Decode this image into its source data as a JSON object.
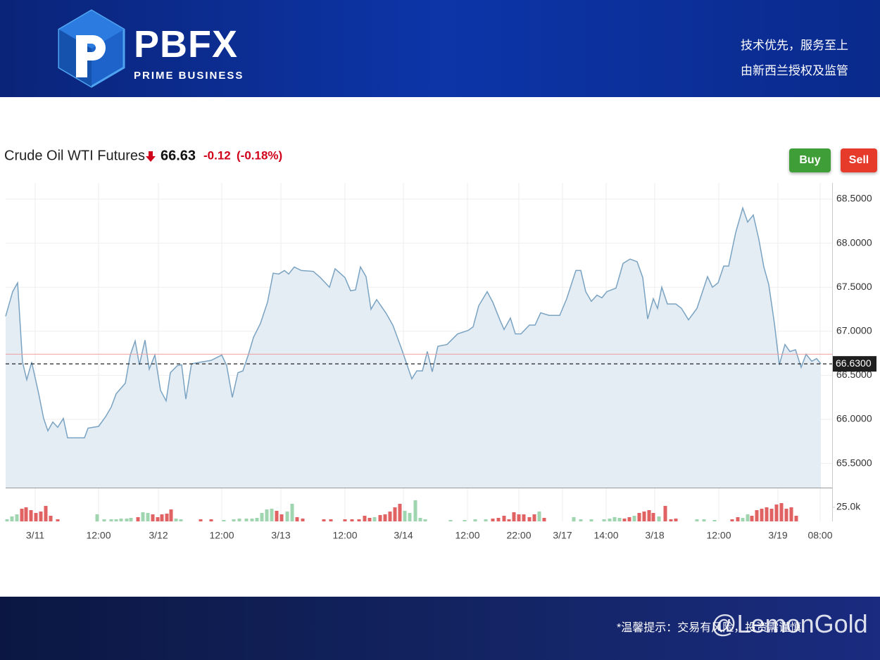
{
  "header": {
    "logo": "PBFX",
    "tagline": "PRIME BUSINESS",
    "slogans": [
      "技术优先，服务至上",
      "由新西兰授权及监管"
    ]
  },
  "chart_data": {
    "type": "line",
    "title": "Crude Oil WTI Futures",
    "last_price": "66.63",
    "change": "-0.12",
    "change_pct": "(-0.18%)",
    "buttons": [
      "Buy",
      "Sell"
    ],
    "color": "#7aa3c2",
    "fill_color": "#e4ecf4",
    "grid": true,
    "xlim": [
      0,
      1174
    ],
    "ylim": [
      65.225,
      68.684
    ],
    "yticks": [
      {
        "value": 65.5,
        "label": "65.5000"
      },
      {
        "value": 66.0,
        "label": "66.0000"
      },
      {
        "value": 66.5,
        "label": "66.5000"
      },
      {
        "value": 67.0,
        "label": "67.0000"
      },
      {
        "value": 67.5,
        "label": "67.5000"
      },
      {
        "value": 68.0,
        "label": "68.0000"
      },
      {
        "value": 68.5,
        "label": "68.5000"
      }
    ],
    "xticks": [
      {
        "value": 42,
        "label": "3/11"
      },
      {
        "value": 132,
        "label": "12:00"
      },
      {
        "value": 217,
        "label": "3/12"
      },
      {
        "value": 307,
        "label": "12:00"
      },
      {
        "value": 391,
        "label": "3/13"
      },
      {
        "value": 482,
        "label": "12:00"
      },
      {
        "value": 565,
        "label": "3/14"
      },
      {
        "value": 656,
        "label": "12:00"
      },
      {
        "value": 729,
        "label": "22:00"
      },
      {
        "value": 791,
        "label": "3/17"
      },
      {
        "value": 853,
        "label": "14:00"
      },
      {
        "value": 922,
        "label": "3/18"
      },
      {
        "value": 1013,
        "label": "12:00"
      },
      {
        "value": 1097,
        "label": "3/19"
      },
      {
        "value": 1157,
        "label": "08:00"
      }
    ],
    "current_price": {
      "value": 66.63,
      "label": "66.6300"
    },
    "reference_line": 66.74,
    "reference_color": "#f0a0a0",
    "x": [
      0,
      10,
      17,
      24,
      30,
      37,
      47,
      54,
      60,
      67,
      74,
      82,
      88,
      102,
      112,
      117,
      132,
      142,
      150,
      157,
      170,
      177,
      184,
      190,
      198,
      204,
      212,
      220,
      228,
      234,
      244,
      250,
      256,
      264,
      277,
      292,
      307,
      314,
      322,
      330,
      337,
      345,
      352,
      362,
      372,
      380,
      388,
      396,
      402,
      410,
      420,
      437,
      447,
      460,
      468,
      482,
      490,
      497,
      504,
      512,
      519,
      527,
      540,
      550,
      562,
      577,
      584,
      592,
      599,
      606,
      614,
      627,
      642,
      657,
      664,
      672,
      684,
      692,
      702,
      708,
      717,
      724,
      732,
      744,
      752,
      760,
      772,
      787,
      797,
      810,
      817,
      824,
      832,
      840,
      847,
      854,
      867,
      877,
      887,
      897,
      905,
      912,
      920,
      926,
      932,
      940,
      952,
      960,
      970,
      982,
      997,
      1004,
      1012,
      1020,
      1027,
      1037,
      1047,
      1054,
      1062,
      1070,
      1077,
      1084,
      1092,
      1099,
      1107,
      1114,
      1122,
      1130,
      1137,
      1145,
      1152,
      1158
    ],
    "values": [
      67.17,
      67.45,
      67.55,
      66.65,
      66.45,
      66.65,
      66.29,
      66.01,
      65.87,
      65.97,
      65.91,
      66.01,
      65.79,
      65.79,
      65.79,
      65.9,
      65.92,
      66.03,
      66.14,
      66.29,
      66.41,
      66.73,
      66.89,
      66.62,
      66.9,
      66.57,
      66.73,
      66.33,
      66.21,
      66.53,
      66.61,
      66.62,
      66.23,
      66.63,
      66.65,
      66.67,
      66.73,
      66.61,
      66.25,
      66.53,
      66.55,
      66.74,
      66.93,
      67.09,
      67.33,
      67.66,
      67.65,
      67.69,
      67.65,
      67.73,
      67.69,
      67.68,
      67.61,
      67.5,
      67.71,
      67.61,
      67.46,
      67.47,
      67.73,
      67.62,
      67.25,
      67.36,
      67.21,
      67.07,
      66.81,
      66.46,
      66.55,
      66.55,
      66.77,
      66.54,
      66.83,
      66.85,
      66.97,
      67.01,
      67.05,
      67.29,
      67.45,
      67.33,
      67.13,
      67.02,
      67.15,
      66.97,
      66.97,
      67.07,
      67.07,
      67.21,
      67.18,
      67.18,
      67.37,
      67.69,
      67.69,
      67.45,
      67.34,
      67.41,
      67.38,
      67.45,
      67.49,
      67.77,
      67.82,
      67.79,
      67.61,
      67.14,
      67.37,
      67.26,
      67.5,
      67.31,
      67.31,
      67.26,
      67.13,
      67.26,
      67.62,
      67.5,
      67.55,
      67.74,
      67.74,
      68.12,
      68.4,
      68.24,
      68.32,
      68.04,
      67.73,
      67.53,
      67.09,
      66.62,
      66.85,
      66.77,
      66.79,
      66.59,
      66.74,
      66.66,
      66.69,
      66.63
    ],
    "volume": {
      "type": "bar",
      "ylim": [
        0,
        57500
      ],
      "yticks": [
        {
          "value": 25000,
          "label": "25.0k"
        }
      ],
      "x": [
        2,
        9,
        16,
        23,
        29,
        36,
        43,
        50,
        57,
        64,
        74,
        130,
        140,
        150,
        157,
        164,
        172,
        178,
        188,
        195,
        202,
        209,
        216,
        222,
        229,
        235,
        242,
        249,
        277,
        292,
        310,
        324,
        332,
        342,
        350,
        357,
        364,
        371,
        378,
        385,
        392,
        400,
        407,
        414,
        422,
        452,
        462,
        482,
        492,
        502,
        510,
        517,
        524,
        532,
        539,
        546,
        553,
        560,
        567,
        574,
        582,
        589,
        596,
        632,
        652,
        667,
        682,
        692,
        700,
        708,
        715,
        722,
        729,
        736,
        744,
        751,
        758,
        765,
        807,
        817,
        832,
        850,
        858,
        865,
        872,
        879,
        886,
        893,
        900,
        907,
        914,
        920,
        928,
        937,
        945,
        952,
        982,
        992,
        1007,
        1032,
        1040,
        1047,
        1054,
        1060,
        1067,
        1074,
        1081,
        1088,
        1095,
        1102,
        1109,
        1116,
        1123
      ],
      "values": [
        3750,
        8750,
        12500,
        22500,
        25000,
        20000,
        15000,
        17500,
        27500,
        10000,
        3750,
        12500,
        3750,
        3750,
        3750,
        5000,
        5000,
        6250,
        7500,
        16250,
        15000,
        12500,
        7500,
        12500,
        13750,
        21250,
        5000,
        3750,
        3750,
        3750,
        2500,
        3750,
        5000,
        5000,
        5000,
        6250,
        15000,
        21250,
        22500,
        18750,
        12500,
        17500,
        31250,
        7500,
        5000,
        3750,
        3750,
        3750,
        3750,
        3750,
        10000,
        6250,
        7500,
        11250,
        12500,
        17500,
        25000,
        31250,
        18750,
        15000,
        37500,
        6250,
        3750,
        2500,
        2500,
        3750,
        3750,
        5000,
        6250,
        10000,
        3750,
        16250,
        12500,
        12500,
        7500,
        12500,
        17500,
        6250,
        7500,
        3750,
        3750,
        3750,
        5000,
        7500,
        6250,
        5000,
        7500,
        10000,
        15000,
        17500,
        20000,
        15000,
        8750,
        27500,
        3750,
        5000,
        3750,
        3750,
        2500,
        3750,
        7500,
        6250,
        12500,
        10000,
        20000,
        22500,
        25000,
        22500,
        30000,
        32500,
        22500,
        25000,
        10000
      ],
      "colors": [
        "#9fd6b0",
        "#9fd6b0",
        "#9fd6b0",
        "#e06262",
        "#e06262",
        "#e06262",
        "#e06262",
        "#e06262",
        "#e06262",
        "#e06262",
        "#e06262",
        "#9fd6b0",
        "#9fd6b0",
        "#9fd6b0",
        "#9fd6b0",
        "#9fd6b0",
        "#9fd6b0",
        "#9fd6b0",
        "#e06262",
        "#9fd6b0",
        "#9fd6b0",
        "#e06262",
        "#e06262",
        "#e06262",
        "#e06262",
        "#e06262",
        "#9fd6b0",
        "#9fd6b0",
        "#e06262",
        "#e06262",
        "#9fd6b0",
        "#9fd6b0",
        "#9fd6b0",
        "#9fd6b0",
        "#9fd6b0",
        "#9fd6b0",
        "#9fd6b0",
        "#9fd6b0",
        "#9fd6b0",
        "#e06262",
        "#e06262",
        "#9fd6b0",
        "#9fd6b0",
        "#e06262",
        "#e06262",
        "#e06262",
        "#e06262",
        "#e06262",
        "#e06262",
        "#e06262",
        "#e06262",
        "#e06262",
        "#9fd6b0",
        "#e06262",
        "#e06262",
        "#e06262",
        "#e06262",
        "#e06262",
        "#9fd6b0",
        "#9fd6b0",
        "#9fd6b0",
        "#9fd6b0",
        "#9fd6b0",
        "#9fd6b0",
        "#9fd6b0",
        "#9fd6b0",
        "#9fd6b0",
        "#e06262",
        "#e06262",
        "#e06262",
        "#e06262",
        "#e06262",
        "#e06262",
        "#e06262",
        "#e06262",
        "#e06262",
        "#9fd6b0",
        "#e06262",
        "#9fd6b0",
        "#9fd6b0",
        "#9fd6b0",
        "#9fd6b0",
        "#9fd6b0",
        "#9fd6b0",
        "#9fd6b0",
        "#e06262",
        "#e06262",
        "#9fd6b0",
        "#e06262",
        "#e06262",
        "#e06262",
        "#e06262",
        "#9fd6b0",
        "#e06262",
        "#e06262",
        "#e06262",
        "#9fd6b0",
        "#9fd6b0",
        "#9fd6b0",
        "#e06262",
        "#e06262",
        "#9fd6b0",
        "#9fd6b0",
        "#e06262",
        "#e06262",
        "#e06262",
        "#e06262",
        "#e06262",
        "#e06262",
        "#e06262",
        "#e06262",
        "#e06262",
        "#e06262"
      ]
    }
  },
  "footer": {
    "notice": "*温馨提示：交易有风险，投资需谨慎",
    "watermark": "@LemonGold"
  }
}
